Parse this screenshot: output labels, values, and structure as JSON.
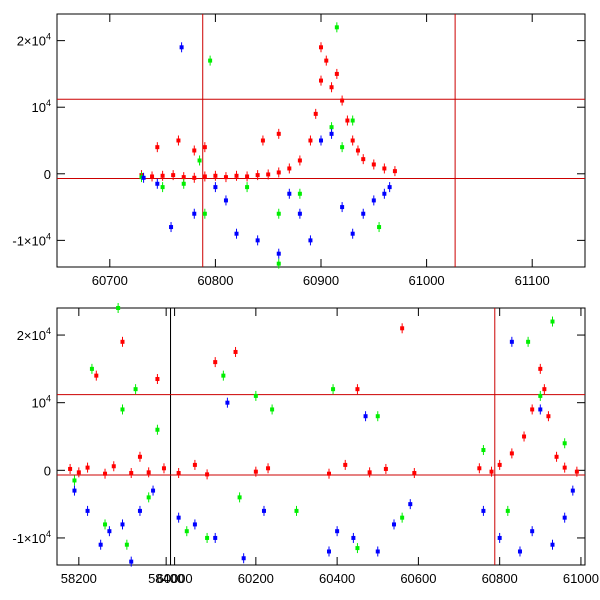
{
  "figure": {
    "panels": [
      {
        "id": "top",
        "xlim": [
          60650,
          61150
        ],
        "ylim": [
          -14000,
          24000
        ],
        "xticks": [
          60700,
          60800,
          60900,
          61000,
          61100
        ],
        "yticks": [
          -10000,
          0,
          10000,
          20000
        ],
        "ytick_labels": [
          "-1×10^4",
          "0",
          "10^4",
          "2×10^4"
        ],
        "hlines": [
          11200,
          -700
        ],
        "vlines": [
          60788,
          61027
        ]
      },
      {
        "id": "bottom",
        "segments": [
          {
            "xlim": [
              58150,
              58410
            ],
            "xticks": [
              58200,
              58400
            ],
            "xtick_labels": [
              "58200",
              "58400"
            ]
          },
          {
            "xlim": [
              59990,
              61010
            ],
            "xticks": [
              60000,
              60200,
              60400,
              60600,
              60800,
              61000
            ],
            "xtick_labels": [
              "60000",
              "60200",
              "60400",
              "60600",
              "60800",
              "61000"
            ]
          }
        ],
        "ylim": [
          -14000,
          24000
        ],
        "yticks": [
          -10000,
          0,
          10000,
          20000
        ],
        "ytick_labels": [
          "-1×10^4",
          "0",
          "10^4",
          "2×10^4"
        ],
        "hlines": [
          11200,
          -700
        ],
        "vlines": [
          60788
        ]
      }
    ]
  },
  "chart_data": [
    {
      "type": "scatter",
      "panel": "top",
      "title": "",
      "xlabel": "",
      "ylabel": "",
      "xlim": [
        60650,
        61150
      ],
      "ylim": [
        -14000,
        24000
      ],
      "grid": false,
      "colors": {
        "red": "#ff0000",
        "green": "#00ee00",
        "blue": "#0000ff",
        "lines": "#cc0000"
      },
      "series": [
        {
          "color": "red",
          "points": [
            [
              60730,
              -200
            ],
            [
              60740,
              -400
            ],
            [
              60750,
              -300
            ],
            [
              60760,
              -200
            ],
            [
              60770,
              -500
            ],
            [
              60780,
              -600
            ],
            [
              60790,
              -400
            ],
            [
              60800,
              -300
            ],
            [
              60810,
              -500
            ],
            [
              60820,
              -300
            ],
            [
              60830,
              -400
            ],
            [
              60840,
              -200
            ],
            [
              60850,
              -100
            ],
            [
              60860,
              200
            ],
            [
              60870,
              800
            ],
            [
              60880,
              2000
            ],
            [
              60890,
              5000
            ],
            [
              60895,
              9000
            ],
            [
              60900,
              14000
            ],
            [
              60905,
              17000
            ],
            [
              60910,
              13000
            ],
            [
              60915,
              15000
            ],
            [
              60920,
              11000
            ],
            [
              60925,
              8000
            ],
            [
              60930,
              5000
            ],
            [
              60935,
              3500
            ],
            [
              60940,
              2200
            ],
            [
              60950,
              1400
            ],
            [
              60960,
              800
            ],
            [
              60970,
              400
            ],
            [
              60790,
              4000
            ],
            [
              60845,
              5000
            ],
            [
              60860,
              6000
            ],
            [
              60900,
              19000
            ],
            [
              60780,
              3500
            ],
            [
              60745,
              4000
            ],
            [
              60765,
              5000
            ]
          ]
        },
        {
          "color": "green",
          "points": [
            [
              60730,
              -500
            ],
            [
              60750,
              -2000
            ],
            [
              60770,
              -1500
            ],
            [
              60785,
              2000
            ],
            [
              60790,
              -6000
            ],
            [
              60795,
              17000
            ],
            [
              60830,
              -2000
            ],
            [
              60860,
              -6000
            ],
            [
              60880,
              -3000
            ],
            [
              60910,
              7000
            ],
            [
              60915,
              22000
            ],
            [
              60920,
              4000
            ],
            [
              60930,
              8000
            ],
            [
              60955,
              -8000
            ],
            [
              60860,
              -13500
            ]
          ]
        },
        {
          "color": "blue",
          "points": [
            [
              60732,
              -600
            ],
            [
              60745,
              -1500
            ],
            [
              60758,
              -8000
            ],
            [
              60768,
              19000
            ],
            [
              60780,
              -6000
            ],
            [
              60800,
              -2000
            ],
            [
              60810,
              -4000
            ],
            [
              60820,
              -9000
            ],
            [
              60840,
              -10000
            ],
            [
              60860,
              -12000
            ],
            [
              60870,
              -3000
            ],
            [
              60880,
              -6000
            ],
            [
              60890,
              -10000
            ],
            [
              60900,
              5000
            ],
            [
              60910,
              6000
            ],
            [
              60920,
              -5000
            ],
            [
              60930,
              -9000
            ],
            [
              60940,
              -6000
            ],
            [
              60950,
              -4000
            ],
            [
              60960,
              -3000
            ],
            [
              60965,
              -2000
            ]
          ]
        }
      ]
    },
    {
      "type": "scatter",
      "panel": "bottom",
      "title": "",
      "xlabel": "",
      "ylabel": "",
      "xlim": [
        [
          58150,
          58410
        ],
        [
          59990,
          61010
        ]
      ],
      "ylim": [
        -14000,
        24000
      ],
      "grid": false,
      "colors": {
        "red": "#ff0000",
        "green": "#00ee00",
        "blue": "#0000ff",
        "lines": "#cc0000"
      },
      "series": [
        {
          "color": "red",
          "points": [
            [
              58180,
              200
            ],
            [
              58200,
              -300
            ],
            [
              58220,
              400
            ],
            [
              58240,
              14000
            ],
            [
              58260,
              -500
            ],
            [
              58280,
              600
            ],
            [
              58300,
              19000
            ],
            [
              58320,
              -400
            ],
            [
              58340,
              2000
            ],
            [
              58360,
              -300
            ],
            [
              58380,
              13500
            ],
            [
              58395,
              300
            ],
            [
              60010,
              -400
            ],
            [
              60050,
              800
            ],
            [
              60080,
              -600
            ],
            [
              60100,
              16000
            ],
            [
              60150,
              17500
            ],
            [
              60200,
              -200
            ],
            [
              60230,
              300
            ],
            [
              60380,
              -500
            ],
            [
              60420,
              800
            ],
            [
              60450,
              12000
            ],
            [
              60480,
              -300
            ],
            [
              60520,
              200
            ],
            [
              60560,
              21000
            ],
            [
              60590,
              -400
            ],
            [
              60750,
              300
            ],
            [
              60780,
              -200
            ],
            [
              60800,
              800
            ],
            [
              60830,
              2500
            ],
            [
              60860,
              5000
            ],
            [
              60880,
              9000
            ],
            [
              60900,
              15000
            ],
            [
              60910,
              12000
            ],
            [
              60920,
              8000
            ],
            [
              60940,
              2000
            ],
            [
              60960,
              400
            ],
            [
              60990,
              -200
            ]
          ]
        },
        {
          "color": "green",
          "points": [
            [
              58190,
              -1500
            ],
            [
              58230,
              15000
            ],
            [
              58260,
              -8000
            ],
            [
              58290,
              24000
            ],
            [
              58300,
              9000
            ],
            [
              58310,
              -11000
            ],
            [
              58330,
              12000
            ],
            [
              58360,
              -4000
            ],
            [
              58380,
              6000
            ],
            [
              60030,
              -9000
            ],
            [
              60080,
              -10000
            ],
            [
              60120,
              14000
            ],
            [
              60160,
              -4000
            ],
            [
              60200,
              11000
            ],
            [
              60240,
              9000
            ],
            [
              60300,
              -6000
            ],
            [
              60390,
              12000
            ],
            [
              60450,
              -11500
            ],
            [
              60500,
              8000
            ],
            [
              60560,
              -7000
            ],
            [
              60760,
              3000
            ],
            [
              60820,
              -6000
            ],
            [
              60870,
              19000
            ],
            [
              60900,
              11000
            ],
            [
              60930,
              22000
            ],
            [
              60960,
              4000
            ]
          ]
        },
        {
          "color": "blue",
          "points": [
            [
              58190,
              -3000
            ],
            [
              58220,
              -6000
            ],
            [
              58250,
              -11000
            ],
            [
              58270,
              -9000
            ],
            [
              58300,
              -8000
            ],
            [
              58320,
              -13500
            ],
            [
              58340,
              -6000
            ],
            [
              58370,
              -3000
            ],
            [
              60010,
              -7000
            ],
            [
              60050,
              -8000
            ],
            [
              60100,
              -10000
            ],
            [
              60130,
              10000
            ],
            [
              60170,
              -13000
            ],
            [
              60220,
              -6000
            ],
            [
              60380,
              -12000
            ],
            [
              60400,
              -9000
            ],
            [
              60440,
              -10000
            ],
            [
              60470,
              8000
            ],
            [
              60500,
              -12000
            ],
            [
              60540,
              -8000
            ],
            [
              60580,
              -5000
            ],
            [
              60760,
              -6000
            ],
            [
              60800,
              -10000
            ],
            [
              60830,
              19000
            ],
            [
              60850,
              -12000
            ],
            [
              60880,
              -9000
            ],
            [
              60900,
              9000
            ],
            [
              60930,
              -11000
            ],
            [
              60960,
              -7000
            ],
            [
              60980,
              -3000
            ]
          ]
        }
      ]
    }
  ]
}
